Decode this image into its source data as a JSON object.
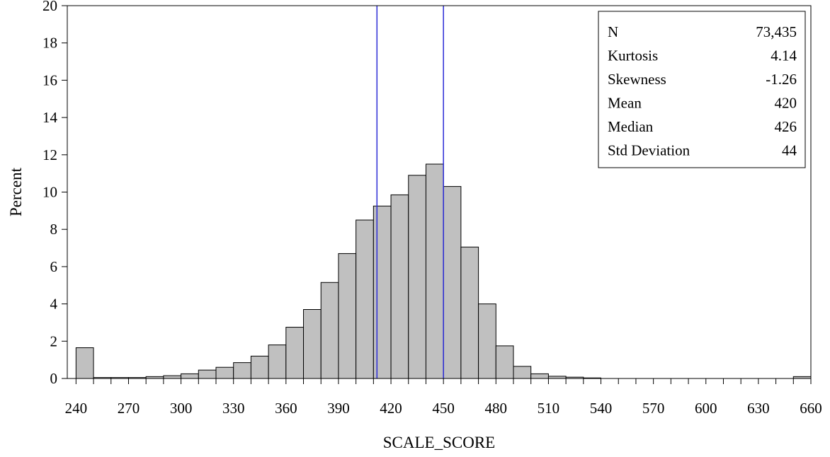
{
  "chart_data": {
    "type": "bar",
    "subtype": "histogram",
    "xlabel": "SCALE_SCORE",
    "ylabel": "Percent",
    "x_ticks": [
      240,
      270,
      300,
      330,
      360,
      390,
      420,
      450,
      480,
      510,
      540,
      570,
      600,
      630,
      660
    ],
    "y_ticks": [
      0,
      2,
      4,
      6,
      8,
      10,
      12,
      14,
      16,
      18,
      20
    ],
    "xlim": [
      235,
      660
    ],
    "ylim": [
      0,
      20
    ],
    "bin_width": 10,
    "bins": [
      {
        "x": 245,
        "value": 1.65
      },
      {
        "x": 255,
        "value": 0.05
      },
      {
        "x": 265,
        "value": 0.05
      },
      {
        "x": 275,
        "value": 0.05
      },
      {
        "x": 285,
        "value": 0.1
      },
      {
        "x": 295,
        "value": 0.15
      },
      {
        "x": 305,
        "value": 0.25
      },
      {
        "x": 315,
        "value": 0.45
      },
      {
        "x": 325,
        "value": 0.6
      },
      {
        "x": 335,
        "value": 0.85
      },
      {
        "x": 345,
        "value": 1.2
      },
      {
        "x": 355,
        "value": 1.8
      },
      {
        "x": 365,
        "value": 2.75
      },
      {
        "x": 375,
        "value": 3.7
      },
      {
        "x": 385,
        "value": 5.15
      },
      {
        "x": 395,
        "value": 6.7
      },
      {
        "x": 405,
        "value": 8.5
      },
      {
        "x": 415,
        "value": 9.25
      },
      {
        "x": 425,
        "value": 9.85
      },
      {
        "x": 435,
        "value": 10.9
      },
      {
        "x": 445,
        "value": 11.5
      },
      {
        "x": 455,
        "value": 10.3
      },
      {
        "x": 465,
        "value": 7.05
      },
      {
        "x": 475,
        "value": 4.0
      },
      {
        "x": 485,
        "value": 1.75
      },
      {
        "x": 495,
        "value": 0.65
      },
      {
        "x": 505,
        "value": 0.25
      },
      {
        "x": 515,
        "value": 0.12
      },
      {
        "x": 525,
        "value": 0.07
      },
      {
        "x": 535,
        "value": 0.03
      },
      {
        "x": 655,
        "value": 0.1
      }
    ],
    "reference_lines": [
      {
        "x": 412,
        "color": "#2b2bd6"
      },
      {
        "x": 450,
        "color": "#2b2bd6"
      }
    ],
    "bar_fill": "#c0c0c0",
    "bar_stroke": "#000000",
    "grid": false,
    "stats_box": {
      "placement": "top-right",
      "rows": [
        {
          "label": "N",
          "value": "73,435"
        },
        {
          "label": "Kurtosis",
          "value": "4.14"
        },
        {
          "label": "Skewness",
          "value": "-1.26"
        },
        {
          "label": "Mean",
          "value": "420"
        },
        {
          "label": "Median",
          "value": "426"
        },
        {
          "label": "Std Deviation",
          "value": "44"
        }
      ]
    }
  }
}
